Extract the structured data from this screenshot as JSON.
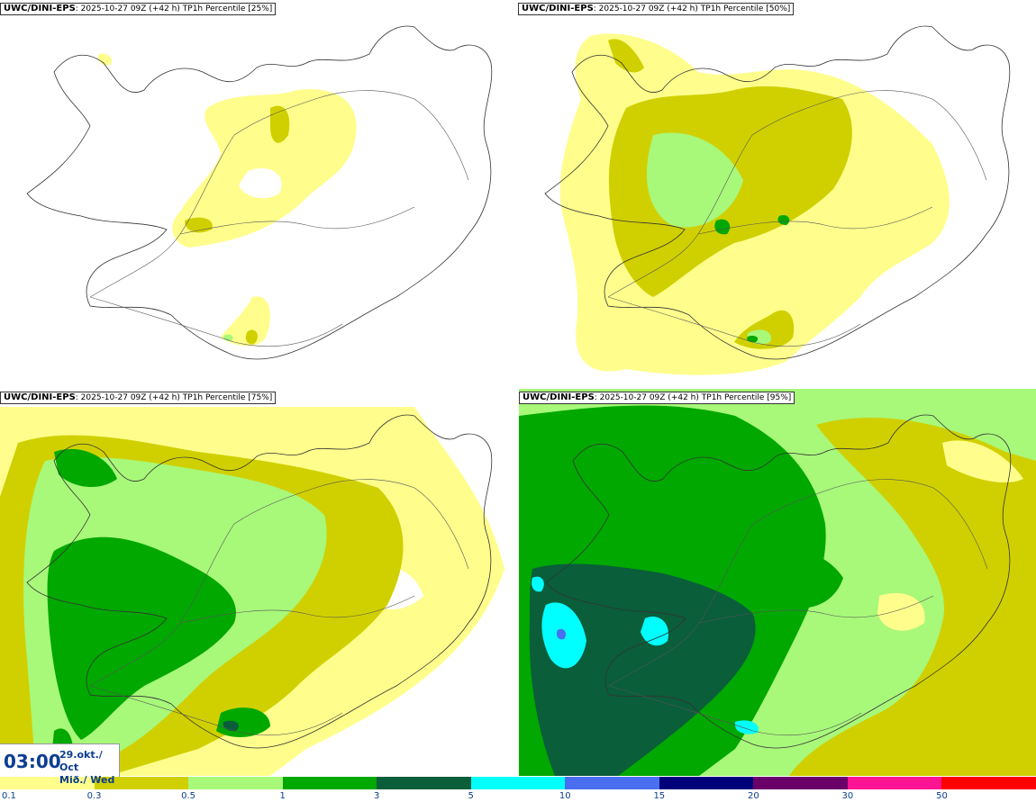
{
  "panels": [
    {
      "model": "UWC/DINI-EPS",
      "run": ": 2025-10-27 09Z (+42 h)",
      "param": "TP1h Percentile [25%]"
    },
    {
      "model": "UWC/DINI-EPS",
      "run": ": 2025-10-27 09Z (+42 h)",
      "param": "TP1h Percentile [50%]"
    },
    {
      "model": "UWC/DINI-EPS",
      "run": ": 2025-10-27 09Z (+42 h)",
      "param": "TP1h Percentile [75%]"
    },
    {
      "model": "UWC/DINI-EPS",
      "run": ": 2025-10-27 09Z (+42 h)",
      "param": "TP1h Percentile [95%]"
    }
  ],
  "valid_time": {
    "time": "03:00",
    "date_line1": "29.okt./ Oct",
    "date_line2": "Mið./ Wed"
  },
  "legend": {
    "ticks": [
      "0.1",
      "0.3",
      "0.5",
      "1",
      "3",
      "5",
      "10",
      "15",
      "20",
      "30",
      "50"
    ],
    "colors": [
      "#fffe8c",
      "#d0d000",
      "#a8f87a",
      "#00a800",
      "#0a5e3a",
      "#00ffff",
      "#4a6ef0",
      "#00007a",
      "#6a006a",
      "#ff1493",
      "#ff0000"
    ]
  },
  "colors": {
    "land_outline": "#333333",
    "roads": "#555555"
  }
}
